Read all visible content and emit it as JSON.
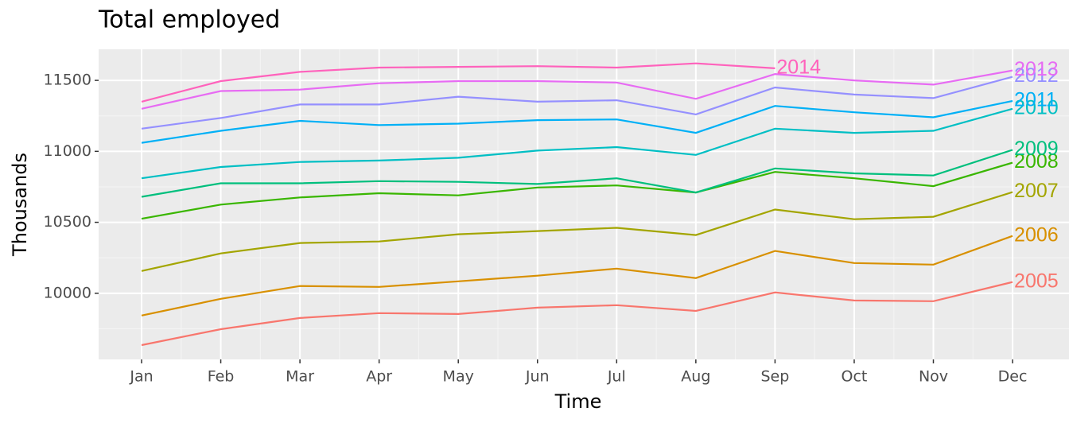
{
  "chart_data": {
    "type": "line",
    "title": "Total employed",
    "x_label": "Time",
    "y_label": "Thousands",
    "categories": [
      "Jan",
      "Feb",
      "Mar",
      "Apr",
      "May",
      "Jun",
      "Jul",
      "Aug",
      "Sep",
      "Oct",
      "Nov",
      "Dec"
    ],
    "ylim": [
      9534,
      11719
    ],
    "yticks": [
      10000,
      10500,
      11000,
      11500
    ],
    "minor_yticks": [
      9750,
      10250,
      10750,
      11250
    ],
    "grid": true,
    "series": [
      {
        "name": "2005",
        "color": "#F8766D",
        "values": [
          9635,
          9747,
          9826,
          9860,
          9854,
          9899,
          9916,
          9876,
          10006,
          9949,
          9944,
          10079
        ]
      },
      {
        "name": "2006",
        "color": "#D89000",
        "values": [
          9843,
          9961,
          10051,
          10045,
          10084,
          10124,
          10174,
          10107,
          10298,
          10213,
          10202,
          10404
        ]
      },
      {
        "name": "2007",
        "color": "#A3A500",
        "values": [
          10157,
          10281,
          10354,
          10365,
          10416,
          10438,
          10461,
          10410,
          10590,
          10522,
          10539,
          10713
        ]
      },
      {
        "name": "2008",
        "color": "#39B600",
        "values": [
          10525,
          10625,
          10675,
          10705,
          10690,
          10745,
          10760,
          10710,
          10855,
          10810,
          10755,
          10920
        ]
      },
      {
        "name": "2009",
        "color": "#00BF7D",
        "values": [
          10680,
          10775,
          10775,
          10790,
          10785,
          10770,
          10810,
          10710,
          10880,
          10845,
          10830,
          11010
        ]
      },
      {
        "name": "2010",
        "color": "#00BFC4",
        "values": [
          10810,
          10890,
          10925,
          10935,
          10955,
          11005,
          11030,
          10975,
          11160,
          11130,
          11145,
          11300
        ]
      },
      {
        "name": "2011",
        "color": "#00B0F6",
        "values": [
          11060,
          11145,
          11215,
          11185,
          11195,
          11220,
          11225,
          11130,
          11320,
          11275,
          11240,
          11355
        ]
      },
      {
        "name": "2012",
        "color": "#9590FF",
        "values": [
          11160,
          11235,
          11330,
          11330,
          11385,
          11350,
          11360,
          11260,
          11450,
          11400,
          11375,
          11525
        ]
      },
      {
        "name": "2013",
        "color": "#E76BF3",
        "values": [
          11300,
          11425,
          11435,
          11480,
          11495,
          11495,
          11485,
          11370,
          11545,
          11500,
          11470,
          11570
        ]
      },
      {
        "name": "2014",
        "color": "#FF62BC",
        "values": [
          11350,
          11495,
          11560,
          11590,
          11595,
          11600,
          11590,
          11620,
          11585,
          null,
          null,
          null
        ]
      }
    ]
  }
}
